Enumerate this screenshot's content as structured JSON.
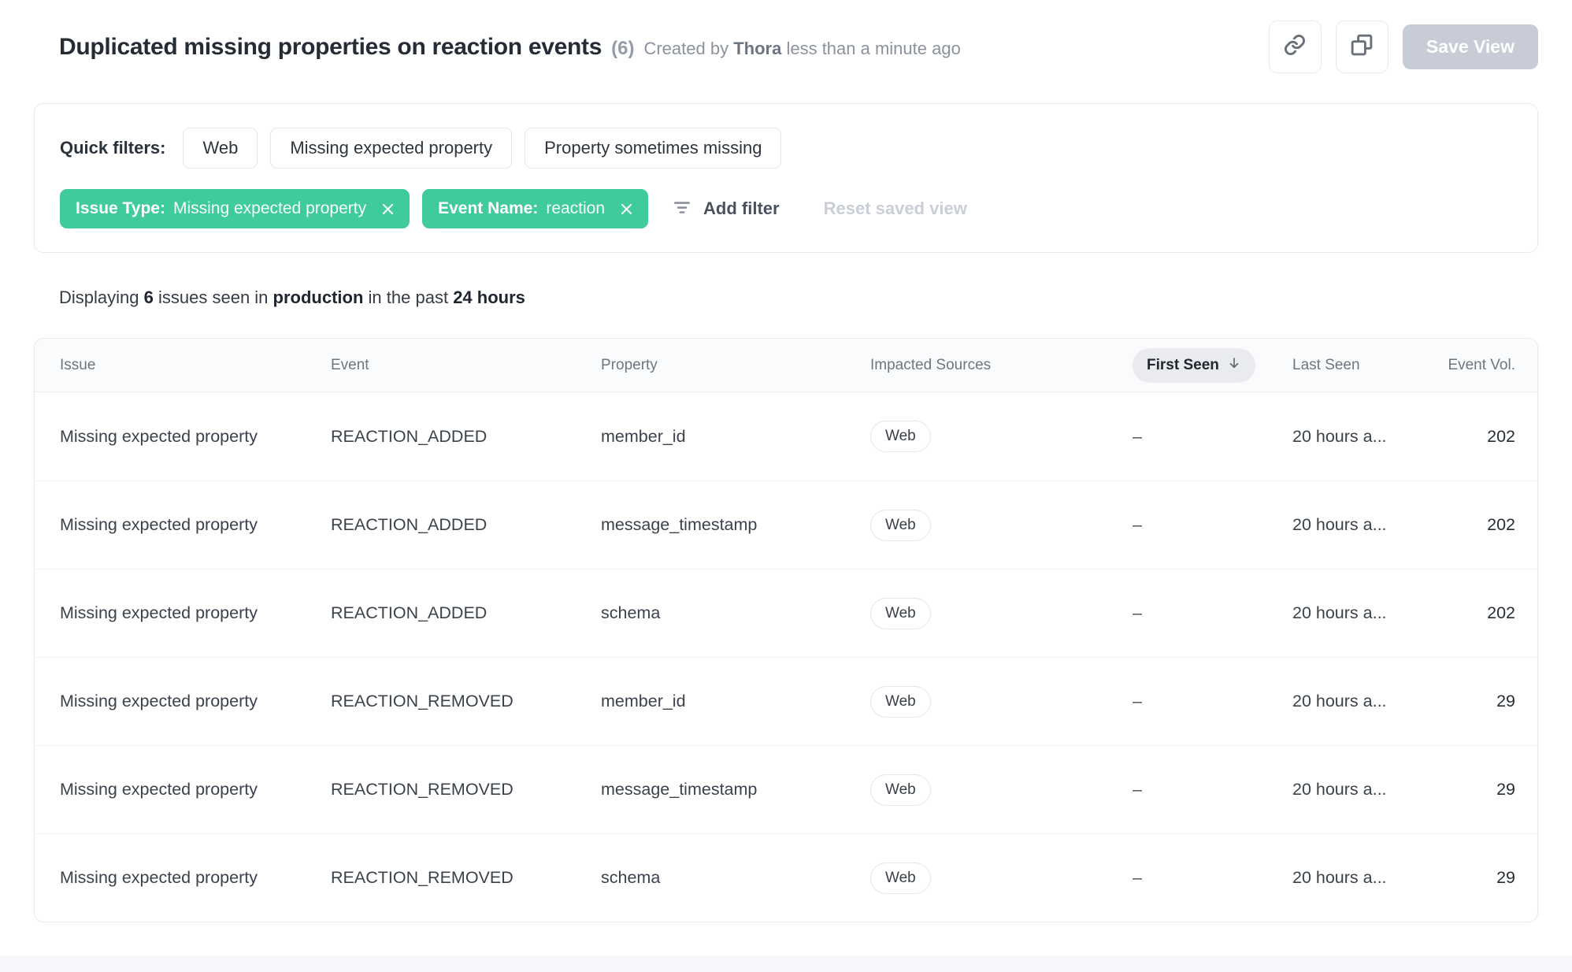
{
  "colors": {
    "accent_green": "#3fcb9b",
    "disabled_button_bg": "#c7ccd6",
    "card_border": "#e7e9ed",
    "sort_pill_bg": "#e9ebee"
  },
  "header": {
    "title": "Duplicated missing properties on reaction events",
    "count": "(6)",
    "created_by_prefix": "Created by",
    "author": "Thora",
    "created_ago": "less than a minute ago",
    "save_view_label": "Save View"
  },
  "filters": {
    "quick_filters_label": "Quick filters:",
    "quick_filters": [
      "Web",
      "Missing expected property",
      "Property sometimes missing"
    ],
    "active_filters": [
      {
        "label": "Issue Type:",
        "value": "Missing expected property"
      },
      {
        "label": "Event Name:",
        "value": "reaction"
      }
    ],
    "add_filter_label": "Add filter",
    "reset_label": "Reset saved view"
  },
  "status": {
    "prefix": "Displaying",
    "count": "6",
    "middle1": "issues seen in",
    "environment": "production",
    "middle2": "in the past",
    "range": "24 hours"
  },
  "table": {
    "columns": {
      "issue": "Issue",
      "event": "Event",
      "property": "Property",
      "impacted_sources": "Impacted Sources",
      "first_seen": "First Seen",
      "last_seen": "Last Seen",
      "event_vol": "Event Vol."
    },
    "sorted_column": "first_seen",
    "sort_direction": "desc",
    "rows": [
      {
        "issue": "Missing expected property",
        "event": "REACTION_ADDED",
        "property": "member_id",
        "sources": [
          "Web"
        ],
        "first_seen": "–",
        "last_seen": "20 hours a...",
        "volume": "202"
      },
      {
        "issue": "Missing expected property",
        "event": "REACTION_ADDED",
        "property": "message_timestamp",
        "sources": [
          "Web"
        ],
        "first_seen": "–",
        "last_seen": "20 hours a...",
        "volume": "202"
      },
      {
        "issue": "Missing expected property",
        "event": "REACTION_ADDED",
        "property": "schema",
        "sources": [
          "Web"
        ],
        "first_seen": "–",
        "last_seen": "20 hours a...",
        "volume": "202"
      },
      {
        "issue": "Missing expected property",
        "event": "REACTION_REMOVED",
        "property": "member_id",
        "sources": [
          "Web"
        ],
        "first_seen": "–",
        "last_seen": "20 hours a...",
        "volume": "29"
      },
      {
        "issue": "Missing expected property",
        "event": "REACTION_REMOVED",
        "property": "message_timestamp",
        "sources": [
          "Web"
        ],
        "first_seen": "–",
        "last_seen": "20 hours a...",
        "volume": "29"
      },
      {
        "issue": "Missing expected property",
        "event": "REACTION_REMOVED",
        "property": "schema",
        "sources": [
          "Web"
        ],
        "first_seen": "–",
        "last_seen": "20 hours a...",
        "volume": "29"
      }
    ]
  }
}
